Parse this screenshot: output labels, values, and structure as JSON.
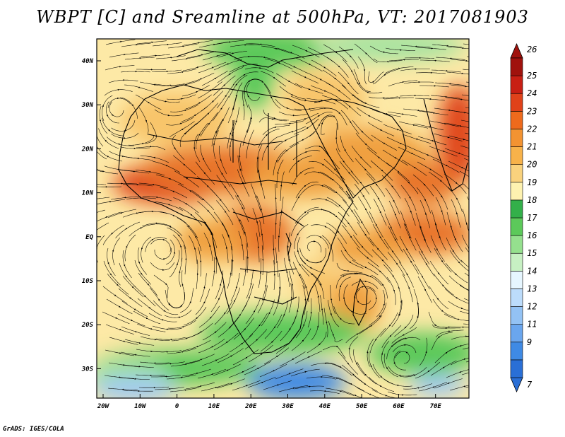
{
  "title": "WBPT [C] and Sreamline at 500hPa, VT: 2017081903",
  "credit": "GrADS: IGES/COLA",
  "map": {
    "lon_labels": [
      "20W",
      "10W",
      "0",
      "10E",
      "20E",
      "30E",
      "40E",
      "50E",
      "60E",
      "70E"
    ],
    "lat_labels": [
      "40N",
      "30N",
      "20N",
      "10N",
      "EQ",
      "10S",
      "20S",
      "30S"
    ]
  },
  "colorbar": {
    "labels": [
      "7",
      "9",
      "11",
      "12",
      "13",
      "14",
      "15",
      "16",
      "17",
      "18",
      "19",
      "20",
      "21",
      "22",
      "23",
      "24",
      "25",
      "26"
    ],
    "colors": [
      "#2a6fd6",
      "#3f8ae4",
      "#6aa6ee",
      "#93c2f4",
      "#bcdcfb",
      "#e6f6ff",
      "#c7f0c3",
      "#95e08e",
      "#5cc95a",
      "#33b04a",
      "#fef2b0",
      "#f9d27d",
      "#f7b24a",
      "#f39332",
      "#ee6a1c",
      "#e0421a",
      "#c81f14",
      "#a0120d"
    ]
  },
  "field_colors": {
    "cool": "#3f8ae4",
    "light_blue": "#9cc8f4",
    "green": "#5cc95a",
    "light_green": "#a6e3a0",
    "yellow": "#fde9a6",
    "light_orange": "#f8c56a",
    "orange": "#f0a040",
    "dark_orange": "#e8752a",
    "red_orange": "#e0481c"
  }
}
